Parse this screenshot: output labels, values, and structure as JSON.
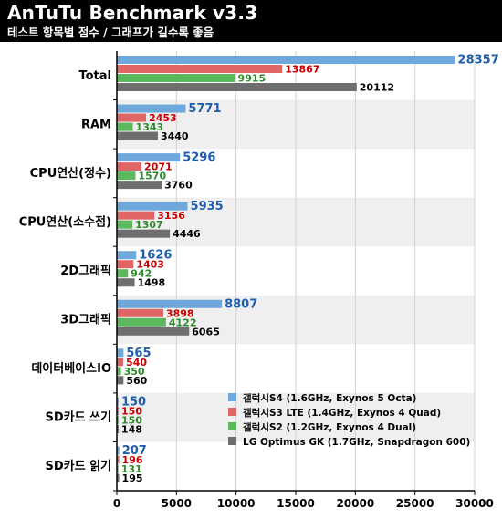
{
  "header": {
    "title": "AnTuTu Benchmark v3.3",
    "subtitle": "테스트 항목별 점수 / 그래프가 길수록 좋음"
  },
  "colors": {
    "header_bg": "#000000",
    "band": "#efefef",
    "s4": "#6fa8dc",
    "s3": "#e06666",
    "s2": "#5cb85c",
    "lg": "#6e6e6e",
    "label_s4": "#1f5fae",
    "label_s3": "#cc0000",
    "label_s2": "#2e8b2e",
    "label_lg": "#000000"
  },
  "chart_data": {
    "type": "bar",
    "orientation": "horizontal",
    "categories": [
      "Total",
      "RAM",
      "CPU연산(정수)",
      "CPU연산(소수점)",
      "2D그래픽",
      "3D그래픽",
      "데이터베이스IO",
      "SD카드 쓰기",
      "SD카드 읽기"
    ],
    "series": [
      {
        "name": "갤럭시S4 (1.6GHz, Exynos 5 Octa)",
        "color": "#6fa8dc",
        "values": [
          28357,
          5771,
          5296,
          5935,
          1626,
          8807,
          565,
          150,
          207
        ]
      },
      {
        "name": "갤럭시S3 LTE (1.4GHz, Exynos 4 Quad)",
        "color": "#e06666",
        "values": [
          13867,
          2453,
          2071,
          3156,
          1403,
          3898,
          540,
          150,
          196
        ]
      },
      {
        "name": "갤럭시S2 (1.2GHz, Exynos 4 Dual)",
        "color": "#5cb85c",
        "values": [
          9915,
          1343,
          1570,
          1307,
          942,
          4122,
          350,
          150,
          131
        ]
      },
      {
        "name": "LG Optimus GK (1.7GHz, Snapdragon 600)",
        "color": "#6e6e6e",
        "values": [
          20112,
          3440,
          3760,
          4446,
          1498,
          6065,
          560,
          148,
          195
        ]
      }
    ],
    "xlim": [
      0,
      30000
    ],
    "xticks": [
      0,
      5000,
      10000,
      15000,
      20000,
      25000,
      30000
    ],
    "legend_position": "lower-right, inside plot",
    "grid": "alternating gray category bands"
  }
}
